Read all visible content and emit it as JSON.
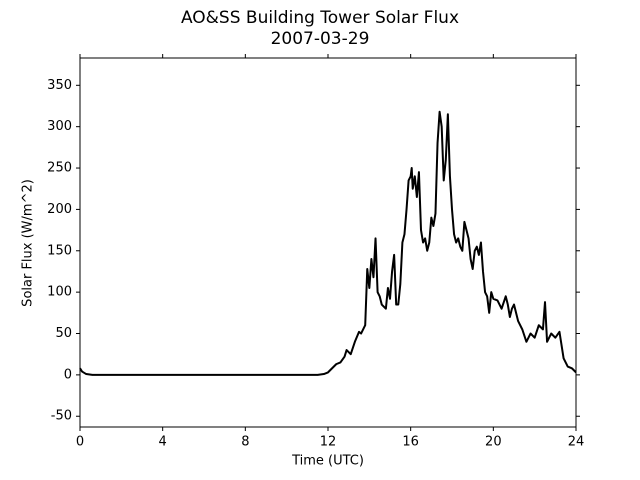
{
  "chart_data": {
    "type": "line",
    "title": "AO&SS Building Tower Solar Flux",
    "subtitle": "2007-03-29",
    "x_label": "Time (UTC)",
    "y_label": "Solar Flux (W/m^2)",
    "xlim": [
      0,
      24
    ],
    "xticks": [
      0,
      4,
      8,
      12,
      16,
      20,
      24
    ],
    "ylim": [
      -63,
      383
    ],
    "yticks": [
      -50,
      0,
      50,
      100,
      150,
      200,
      250,
      300,
      350
    ],
    "series": [
      {
        "color": "#000000",
        "x": [
          0,
          0.1,
          0.3,
          0.6,
          2,
          6,
          11.5,
          11.8,
          12,
          12.2,
          12.4,
          12.6,
          12.8,
          12.9,
          13.1,
          13.3,
          13.5,
          13.6,
          13.8,
          13.9,
          14.0,
          14.1,
          14.2,
          14.3,
          14.4,
          14.5,
          14.6,
          14.8,
          14.9,
          15.0,
          15.1,
          15.2,
          15.3,
          15.4,
          15.5,
          15.6,
          15.7,
          15.8,
          15.9,
          16.0,
          16.05,
          16.1,
          16.2,
          16.3,
          16.4,
          16.5,
          16.6,
          16.7,
          16.8,
          16.9,
          17.0,
          17.1,
          17.2,
          17.3,
          17.4,
          17.5,
          17.6,
          17.7,
          17.8,
          17.9,
          18.0,
          18.1,
          18.2,
          18.3,
          18.4,
          18.5,
          18.6,
          18.7,
          18.8,
          18.9,
          19.0,
          19.1,
          19.2,
          19.3,
          19.4,
          19.5,
          19.6,
          19.7,
          19.8,
          19.9,
          20.0,
          20.2,
          20.4,
          20.6,
          20.7,
          20.8,
          20.9,
          21.0,
          21.2,
          21.4,
          21.6,
          21.8,
          22.0,
          22.2,
          22.4,
          22.5,
          22.6,
          22.8,
          23.0,
          23.2,
          23.4,
          23.6,
          23.8,
          24
        ],
        "values": [
          8,
          4,
          1,
          0,
          0,
          0,
          0,
          1,
          3,
          8,
          13,
          15,
          22,
          30,
          25,
          40,
          52,
          50,
          60,
          128,
          105,
          140,
          118,
          165,
          100,
          95,
          85,
          80,
          105,
          92,
          125,
          145,
          85,
          85,
          110,
          160,
          170,
          200,
          235,
          240,
          250,
          225,
          240,
          215,
          245,
          175,
          160,
          165,
          150,
          160,
          190,
          180,
          195,
          280,
          318,
          300,
          235,
          260,
          315,
          240,
          200,
          170,
          160,
          165,
          155,
          150,
          185,
          175,
          165,
          140,
          128,
          150,
          155,
          145,
          160,
          125,
          100,
          95,
          75,
          100,
          92,
          90,
          80,
          95,
          85,
          70,
          80,
          85,
          65,
          55,
          40,
          50,
          45,
          60,
          55,
          88,
          40,
          50,
          45,
          52,
          20,
          10,
          8,
          3
        ]
      }
    ]
  }
}
